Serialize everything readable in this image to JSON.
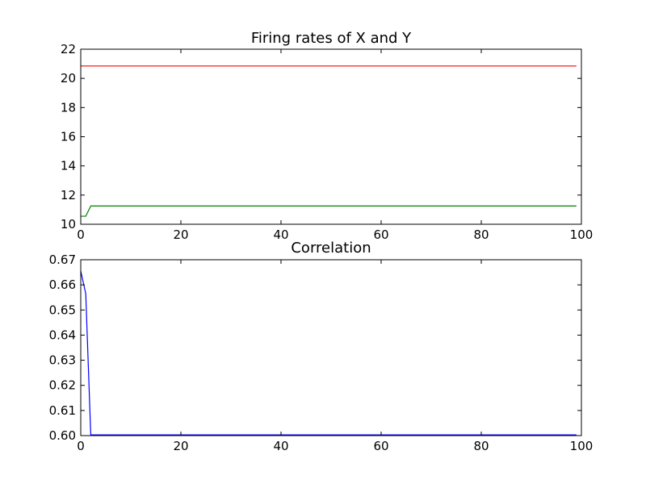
{
  "chart_data": [
    {
      "type": "line",
      "title": "Firing rates of X and Y",
      "xlabel": "",
      "ylabel": "",
      "xlim": [
        0,
        100
      ],
      "ylim": [
        10,
        22
      ],
      "xticks": [
        0,
        20,
        40,
        60,
        80,
        100
      ],
      "yticks": [
        10,
        12,
        14,
        16,
        18,
        20,
        22
      ],
      "grid": false,
      "series": [
        {
          "color": "#ff0000",
          "points": [
            [
              0,
              20.85
            ],
            [
              99,
              20.85
            ]
          ]
        },
        {
          "color": "#008000",
          "points": [
            [
              0,
              10.55
            ],
            [
              1,
              10.55
            ],
            [
              2,
              11.25
            ],
            [
              99,
              11.25
            ]
          ]
        }
      ]
    },
    {
      "type": "line",
      "title": "Correlation",
      "xlabel": "",
      "ylabel": "",
      "xlim": [
        0,
        100
      ],
      "ylim": [
        0.6,
        0.67
      ],
      "xticks": [
        0,
        20,
        40,
        60,
        80,
        100
      ],
      "yticks": [
        0.6,
        0.61,
        0.62,
        0.63,
        0.64,
        0.65,
        0.66,
        0.67
      ],
      "ytick_labels": [
        "0.60",
        "0.61",
        "0.62",
        "0.63",
        "0.64",
        "0.65",
        "0.66",
        "0.67"
      ],
      "grid": false,
      "series": [
        {
          "color": "#0000ff",
          "points": [
            [
              0,
              0.6655
            ],
            [
              1,
              0.6565
            ],
            [
              2,
              0.6003
            ],
            [
              99,
              0.6003
            ]
          ]
        }
      ]
    }
  ]
}
